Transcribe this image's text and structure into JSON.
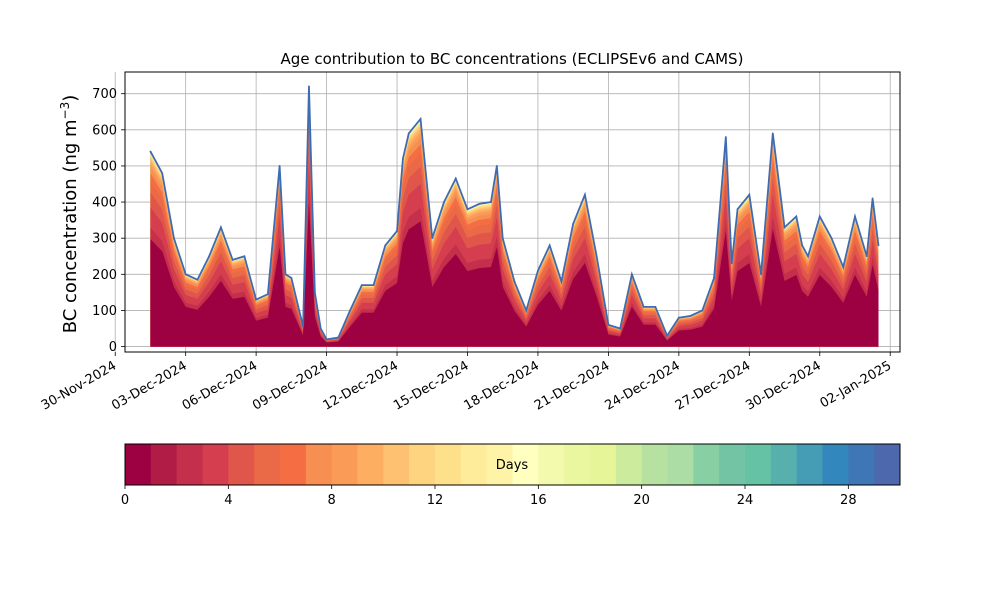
{
  "chart_data": {
    "type": "area",
    "title": "Age contribution to BC concentrations (ECLIPSEv6 and CAMS)",
    "ylabel": "BC concentration (ng m",
    "ylabel_sup": "−3",
    "ylabel_close": ")",
    "xlabel": "",
    "ylim": [
      -15,
      760
    ],
    "xlim": [
      "2024-11-30T10:00",
      "2025-01-02T10:00"
    ],
    "y_ticks": [
      0,
      100,
      200,
      300,
      400,
      500,
      600,
      700
    ],
    "x_ticks": [
      "30-Nov-2024",
      "03-Dec-2024",
      "06-Dec-2024",
      "09-Dec-2024",
      "12-Dec-2024",
      "15-Dec-2024",
      "18-Dec-2024",
      "21-Dec-2024",
      "24-Dec-2024",
      "27-Dec-2024",
      "30-Dec-2024",
      "02-Jan-2025"
    ],
    "grid": true,
    "stack_by": "age in days",
    "total_color": "#3f6bb0",
    "total_series": {
      "name": "",
      "x": [
        "2024-12-01T12:00",
        "2024-12-02T00:00",
        "2024-12-02T12:00",
        "2024-12-03T00:00",
        "2024-12-03T12:00",
        "2024-12-04T00:00",
        "2024-12-04T12:00",
        "2024-12-05T00:00",
        "2024-12-05T12:00",
        "2024-12-06T00:00",
        "2024-12-06T12:00",
        "2024-12-07T00:00",
        "2024-12-07T06:00",
        "2024-12-07T12:00",
        "2024-12-08T00:00",
        "2024-12-08T06:00",
        "2024-12-08T12:00",
        "2024-12-08T18:00",
        "2024-12-09T00:00",
        "2024-12-09T12:00",
        "2024-12-10T00:00",
        "2024-12-10T12:00",
        "2024-12-11T00:00",
        "2024-12-11T12:00",
        "2024-12-12T00:00",
        "2024-12-12T06:00",
        "2024-12-12T12:00",
        "2024-12-13T00:00",
        "2024-12-13T12:00",
        "2024-12-14T00:00",
        "2024-12-14T12:00",
        "2024-12-15T00:00",
        "2024-12-15T12:00",
        "2024-12-16T00:00",
        "2024-12-16T06:00",
        "2024-12-16T12:00",
        "2024-12-17T00:00",
        "2024-12-17T12:00",
        "2024-12-18T00:00",
        "2024-12-18T12:00",
        "2024-12-19T00:00",
        "2024-12-19T12:00",
        "2024-12-20T00:00",
        "2024-12-20T12:00",
        "2024-12-21T00:00",
        "2024-12-21T12:00",
        "2024-12-22T00:00",
        "2024-12-22T12:00",
        "2024-12-23T00:00",
        "2024-12-23T12:00",
        "2024-12-24T00:00",
        "2024-12-24T12:00",
        "2024-12-25T00:00",
        "2024-12-25T12:00",
        "2024-12-26T00:00",
        "2024-12-26T06:00",
        "2024-12-26T12:00",
        "2024-12-27T00:00",
        "2024-12-27T12:00",
        "2024-12-28T00:00",
        "2024-12-28T12:00",
        "2024-12-29T00:00",
        "2024-12-29T06:00",
        "2024-12-29T12:00",
        "2024-12-30T00:00",
        "2024-12-30T12:00",
        "2024-12-31T00:00",
        "2024-12-31T12:00",
        "2025-01-01T00:00",
        "2025-01-01T06:00",
        "2025-01-01T12:00"
      ],
      "values": [
        540,
        480,
        300,
        200,
        185,
        250,
        330,
        240,
        250,
        130,
        145,
        500,
        200,
        190,
        55,
        720,
        150,
        50,
        20,
        25,
        100,
        170,
        170,
        280,
        320,
        520,
        590,
        630,
        300,
        400,
        465,
        380,
        395,
        400,
        500,
        300,
        180,
        100,
        210,
        280,
        180,
        340,
        420,
        250,
        60,
        50,
        200,
        110,
        110,
        30,
        80,
        85,
        100,
        190,
        580,
        230,
        380,
        420,
        200,
        590,
        330,
        360,
        280,
        250,
        360,
        300,
        220,
        360,
        250,
        410,
        280
      ]
    },
    "age_bins": {
      "min_days": 0,
      "max_days": 30,
      "step_days": 1,
      "colorbar_label": "Days",
      "colorbar_ticks": [
        0,
        4,
        8,
        12,
        16,
        20,
        24,
        28
      ],
      "colors": [
        "#9e0142",
        "#b11c46",
        "#c42f4b",
        "#d53e4f",
        "#e0564b",
        "#ea6a47",
        "#f46d43",
        "#f78e52",
        "#fa9c58",
        "#fdae61",
        "#fdc171",
        "#fed481",
        "#fee08b",
        "#feec9b",
        "#fff3a8",
        "#ffffbf",
        "#f4faad",
        "#eaf79f",
        "#e6f598",
        "#cdeb9d",
        "#b6e1a1",
        "#abdda4",
        "#88cfa4",
        "#72c4a5",
        "#66c2a5",
        "#58b0ad",
        "#449db5",
        "#3288bd",
        "#3f77b6",
        "#4d68ad",
        "#5e4fa2"
      ]
    }
  }
}
